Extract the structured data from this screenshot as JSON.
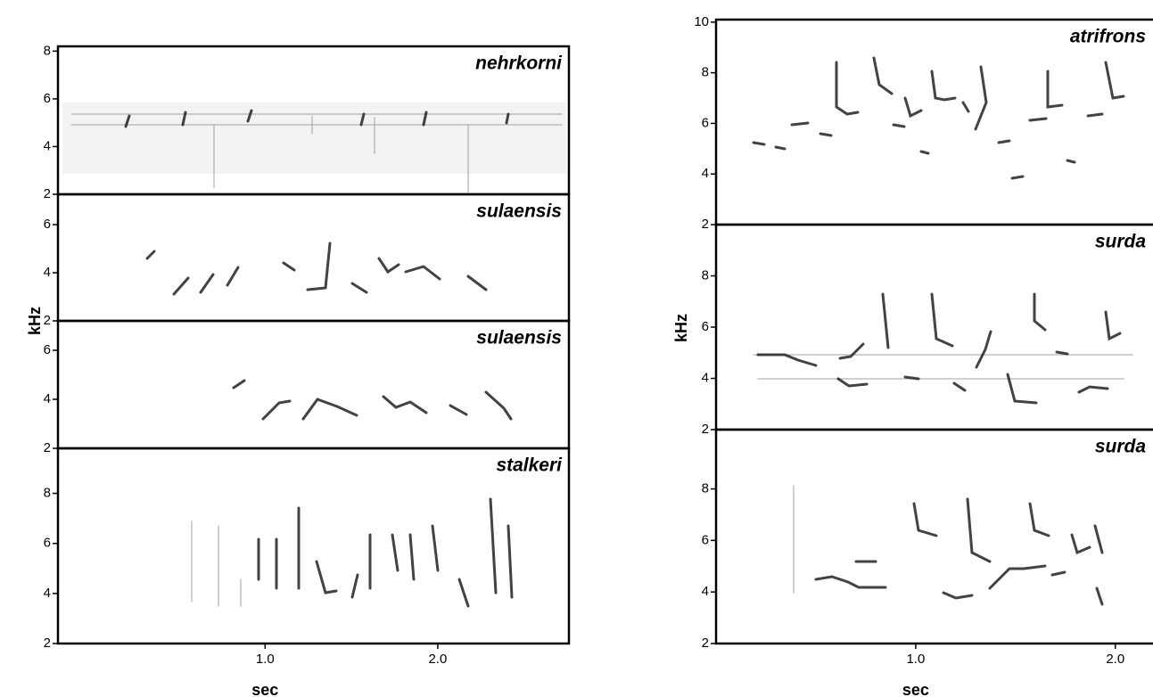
{
  "chart_data": [
    {
      "type": "spectrogram",
      "xlabel": "sec",
      "ylabel": "kHz",
      "xlim": [
        -0.2,
        2.76
      ],
      "xticks": [
        {
          "value": 1,
          "label": "1.0"
        },
        {
          "value": 2,
          "label": "2.0"
        }
      ],
      "panels": [
        {
          "title": "nehrkorni",
          "ylim": [
            2,
            8.2
          ],
          "yticks": [
            2,
            4,
            6,
            8
          ]
        },
        {
          "title": "sulaensis",
          "ylim": [
            2,
            7.26
          ],
          "yticks": [
            2,
            4,
            6
          ]
        },
        {
          "title": "sulaensis",
          "ylim": [
            2,
            7.2
          ],
          "yticks": [
            2,
            4,
            6
          ]
        },
        {
          "title": "stalkeri",
          "ylim": [
            2,
            9.8
          ],
          "yticks": [
            2,
            4,
            6,
            8
          ]
        }
      ]
    },
    {
      "type": "spectrogram",
      "xlabel": "sec",
      "ylabel": "kHz",
      "xlim": [
        0,
        2.22
      ],
      "xticks": [
        {
          "value": 1,
          "label": "1.0"
        },
        {
          "value": 2,
          "label": "2.0"
        }
      ],
      "panels": [
        {
          "title": "atrifrons",
          "ylim": [
            2,
            10.1
          ],
          "yticks": [
            2,
            4,
            6,
            8,
            10
          ]
        },
        {
          "title": "surda",
          "ylim": [
            2,
            10
          ],
          "yticks": [
            2,
            4,
            6,
            8
          ]
        },
        {
          "title": "surda",
          "ylim": [
            2,
            10.3
          ],
          "yticks": [
            2,
            4,
            6,
            8
          ]
        }
      ]
    }
  ]
}
